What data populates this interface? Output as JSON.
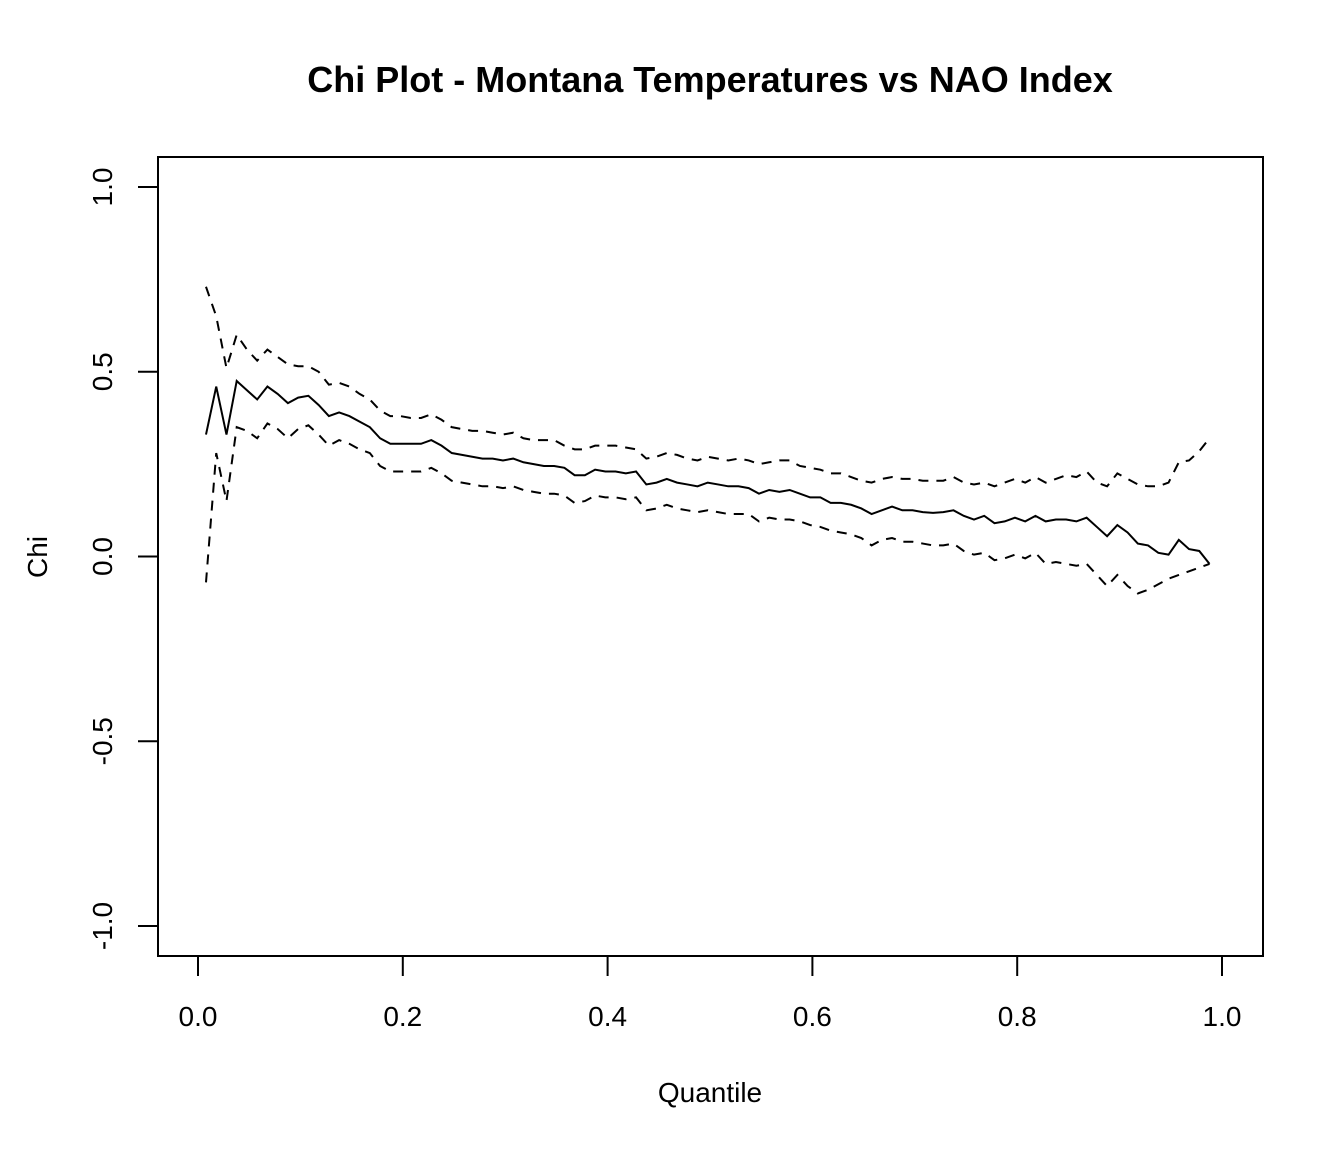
{
  "chart_data": {
    "type": "line",
    "title": "Chi Plot - Montana Temperatures vs NAO Index",
    "xlabel": "Quantile",
    "ylabel": "Chi",
    "xlim": [
      0.0,
      1.0
    ],
    "ylim": [
      -1.0,
      1.0
    ],
    "xticks": [
      0.0,
      0.2,
      0.4,
      0.6,
      0.8,
      1.0
    ],
    "xtick_labels": [
      "0.0",
      "0.2",
      "0.4",
      "0.6",
      "0.8",
      "1.0"
    ],
    "yticks": [
      -1.0,
      -0.5,
      0.0,
      0.5,
      1.0
    ],
    "ytick_labels": [
      "-1.0",
      "-0.5",
      "0.0",
      "0.5",
      "1.0"
    ],
    "grid": false,
    "legend": "none",
    "x": [
      0.0078,
      0.0178,
      0.0278,
      0.0378,
      0.0478,
      0.0578,
      0.0678,
      0.0778,
      0.0878,
      0.0978,
      0.1078,
      0.1178,
      0.1278,
      0.1378,
      0.1478,
      0.1578,
      0.1678,
      0.1778,
      0.1878,
      0.1978,
      0.2078,
      0.2178,
      0.2278,
      0.2378,
      0.2478,
      0.2578,
      0.2678,
      0.2778,
      0.2878,
      0.2978,
      0.3078,
      0.3178,
      0.3278,
      0.3378,
      0.3478,
      0.3578,
      0.3678,
      0.3778,
      0.3878,
      0.3978,
      0.4078,
      0.4178,
      0.4278,
      0.4378,
      0.4478,
      0.4578,
      0.4678,
      0.4778,
      0.4878,
      0.4978,
      0.5078,
      0.5178,
      0.5278,
      0.5378,
      0.5478,
      0.5578,
      0.5678,
      0.5778,
      0.5878,
      0.5978,
      0.6078,
      0.6178,
      0.6278,
      0.6378,
      0.6478,
      0.6578,
      0.6678,
      0.6778,
      0.6878,
      0.6978,
      0.7078,
      0.7178,
      0.7278,
      0.7378,
      0.7478,
      0.7578,
      0.7678,
      0.7778,
      0.7878,
      0.7978,
      0.8078,
      0.8178,
      0.8278,
      0.8378,
      0.8478,
      0.8578,
      0.8678,
      0.8778,
      0.8878,
      0.8978,
      0.9078,
      0.9178,
      0.9278,
      0.9378,
      0.9478,
      0.9578,
      0.9678,
      0.9778,
      0.9878
    ],
    "series": [
      {
        "style": "solid",
        "color": "#000000",
        "values": [
          0.33,
          0.46,
          0.33,
          0.475,
          0.45,
          0.425,
          0.46,
          0.44,
          0.415,
          0.43,
          0.435,
          0.41,
          0.38,
          0.39,
          0.38,
          0.365,
          0.35,
          0.32,
          0.305,
          0.305,
          0.305,
          0.305,
          0.315,
          0.3,
          0.28,
          0.275,
          0.27,
          0.265,
          0.265,
          0.26,
          0.265,
          0.255,
          0.25,
          0.245,
          0.245,
          0.24,
          0.22,
          0.22,
          0.235,
          0.23,
          0.23,
          0.225,
          0.23,
          0.195,
          0.2,
          0.21,
          0.2,
          0.195,
          0.19,
          0.2,
          0.195,
          0.19,
          0.19,
          0.185,
          0.17,
          0.18,
          0.175,
          0.18,
          0.17,
          0.16,
          0.16,
          0.145,
          0.145,
          0.14,
          0.13,
          0.115,
          0.125,
          0.135,
          0.125,
          0.125,
          0.12,
          0.118,
          0.12,
          0.125,
          0.11,
          0.1,
          0.11,
          0.09,
          0.095,
          0.105,
          0.095,
          0.11,
          0.095,
          0.1,
          0.1,
          0.095,
          0.105,
          0.08,
          0.055,
          0.085,
          0.065,
          0.035,
          0.03,
          0.01,
          0.005,
          0.045,
          0.02,
          0.015,
          -0.02
        ]
      },
      {
        "style": "dashed",
        "color": "#000000",
        "values": [
          0.73,
          0.65,
          0.51,
          0.6,
          0.56,
          0.53,
          0.56,
          0.54,
          0.52,
          0.515,
          0.515,
          0.5,
          0.465,
          0.47,
          0.46,
          0.44,
          0.425,
          0.395,
          0.38,
          0.38,
          0.375,
          0.375,
          0.385,
          0.37,
          0.35,
          0.345,
          0.34,
          0.34,
          0.335,
          0.33,
          0.335,
          0.32,
          0.315,
          0.315,
          0.315,
          0.3,
          0.29,
          0.29,
          0.3,
          0.3,
          0.3,
          0.295,
          0.29,
          0.265,
          0.27,
          0.28,
          0.275,
          0.265,
          0.26,
          0.27,
          0.265,
          0.26,
          0.265,
          0.26,
          0.25,
          0.255,
          0.26,
          0.26,
          0.245,
          0.24,
          0.235,
          0.225,
          0.225,
          0.215,
          0.205,
          0.2,
          0.21,
          0.215,
          0.21,
          0.21,
          0.205,
          0.205,
          0.205,
          0.215,
          0.2,
          0.195,
          0.2,
          0.19,
          0.2,
          0.21,
          0.2,
          0.215,
          0.2,
          0.21,
          0.22,
          0.215,
          0.23,
          0.2,
          0.19,
          0.225,
          0.21,
          0.195,
          0.19,
          0.19,
          0.2,
          0.255,
          0.26,
          0.285,
          0.32
        ]
      },
      {
        "style": "dashed",
        "color": "#000000",
        "values": [
          -0.07,
          0.28,
          0.15,
          0.35,
          0.34,
          0.32,
          0.36,
          0.345,
          0.32,
          0.345,
          0.355,
          0.33,
          0.3,
          0.315,
          0.305,
          0.29,
          0.28,
          0.245,
          0.23,
          0.23,
          0.23,
          0.23,
          0.24,
          0.225,
          0.205,
          0.2,
          0.195,
          0.19,
          0.19,
          0.185,
          0.19,
          0.18,
          0.175,
          0.17,
          0.17,
          0.165,
          0.145,
          0.15,
          0.165,
          0.16,
          0.16,
          0.155,
          0.16,
          0.125,
          0.13,
          0.14,
          0.13,
          0.125,
          0.12,
          0.125,
          0.12,
          0.115,
          0.115,
          0.115,
          0.095,
          0.105,
          0.1,
          0.1,
          0.095,
          0.085,
          0.08,
          0.07,
          0.065,
          0.06,
          0.05,
          0.03,
          0.045,
          0.05,
          0.04,
          0.04,
          0.035,
          0.03,
          0.03,
          0.035,
          0.015,
          0.005,
          0.01,
          -0.01,
          -0.005,
          0.005,
          -0.005,
          0.01,
          -0.02,
          -0.015,
          -0.02,
          -0.025,
          -0.02,
          -0.05,
          -0.08,
          -0.05,
          -0.08,
          -0.1,
          -0.09,
          -0.075,
          -0.06,
          -0.05,
          -0.04,
          -0.03,
          -0.02
        ]
      }
    ]
  }
}
